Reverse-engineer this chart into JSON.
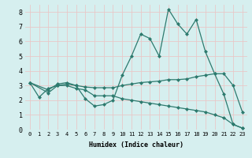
{
  "line1_x": [
    0,
    1,
    2,
    3,
    4,
    5,
    6,
    7,
    8,
    9,
    10,
    11,
    12,
    13,
    14,
    15,
    16,
    17,
    18,
    19,
    20,
    21,
    22,
    23
  ],
  "line1_y": [
    3.2,
    2.2,
    2.8,
    3.0,
    3.1,
    3.0,
    2.1,
    1.6,
    1.7,
    2.0,
    3.7,
    5.0,
    6.5,
    6.2,
    5.0,
    8.2,
    7.2,
    6.5,
    7.5,
    5.3,
    3.8,
    2.4,
    0.35,
    0.1
  ],
  "line2_x": [
    0,
    2,
    3,
    4,
    5,
    6,
    7,
    8,
    9,
    10,
    11,
    12,
    13,
    14,
    15,
    16,
    17,
    18,
    19,
    20,
    21,
    22,
    23
  ],
  "line2_y": [
    3.2,
    2.7,
    3.1,
    3.2,
    3.0,
    2.9,
    2.85,
    2.85,
    2.85,
    3.0,
    3.1,
    3.2,
    3.25,
    3.3,
    3.4,
    3.4,
    3.45,
    3.6,
    3.7,
    3.8,
    3.8,
    3.0,
    1.2
  ],
  "line3_x": [
    0,
    2,
    3,
    4,
    5,
    6,
    7,
    8,
    9,
    10,
    11,
    12,
    13,
    14,
    15,
    16,
    17,
    18,
    19,
    20,
    21,
    22,
    23
  ],
  "line3_y": [
    3.2,
    2.5,
    3.0,
    3.0,
    2.8,
    2.7,
    2.3,
    2.3,
    2.3,
    2.1,
    2.0,
    1.9,
    1.8,
    1.7,
    1.6,
    1.5,
    1.4,
    1.3,
    1.2,
    1.0,
    0.8,
    0.35,
    0.1
  ],
  "color": "#2d7a6e",
  "bg_color": "#d6efef",
  "grid_color": "#e8c8c8",
  "xlabel": "Humidex (Indice chaleur)",
  "xlim": [
    -0.5,
    23.5
  ],
  "ylim": [
    0,
    8.5
  ],
  "xticks": [
    0,
    1,
    2,
    3,
    4,
    5,
    6,
    7,
    8,
    9,
    10,
    11,
    12,
    13,
    14,
    15,
    16,
    17,
    18,
    19,
    20,
    21,
    22,
    23
  ],
  "yticks": [
    0,
    1,
    2,
    3,
    4,
    5,
    6,
    7,
    8
  ],
  "marker": "D",
  "markersize": 2.5,
  "linewidth": 0.9,
  "tick_labelsize": 5,
  "xlabel_fontsize": 6
}
